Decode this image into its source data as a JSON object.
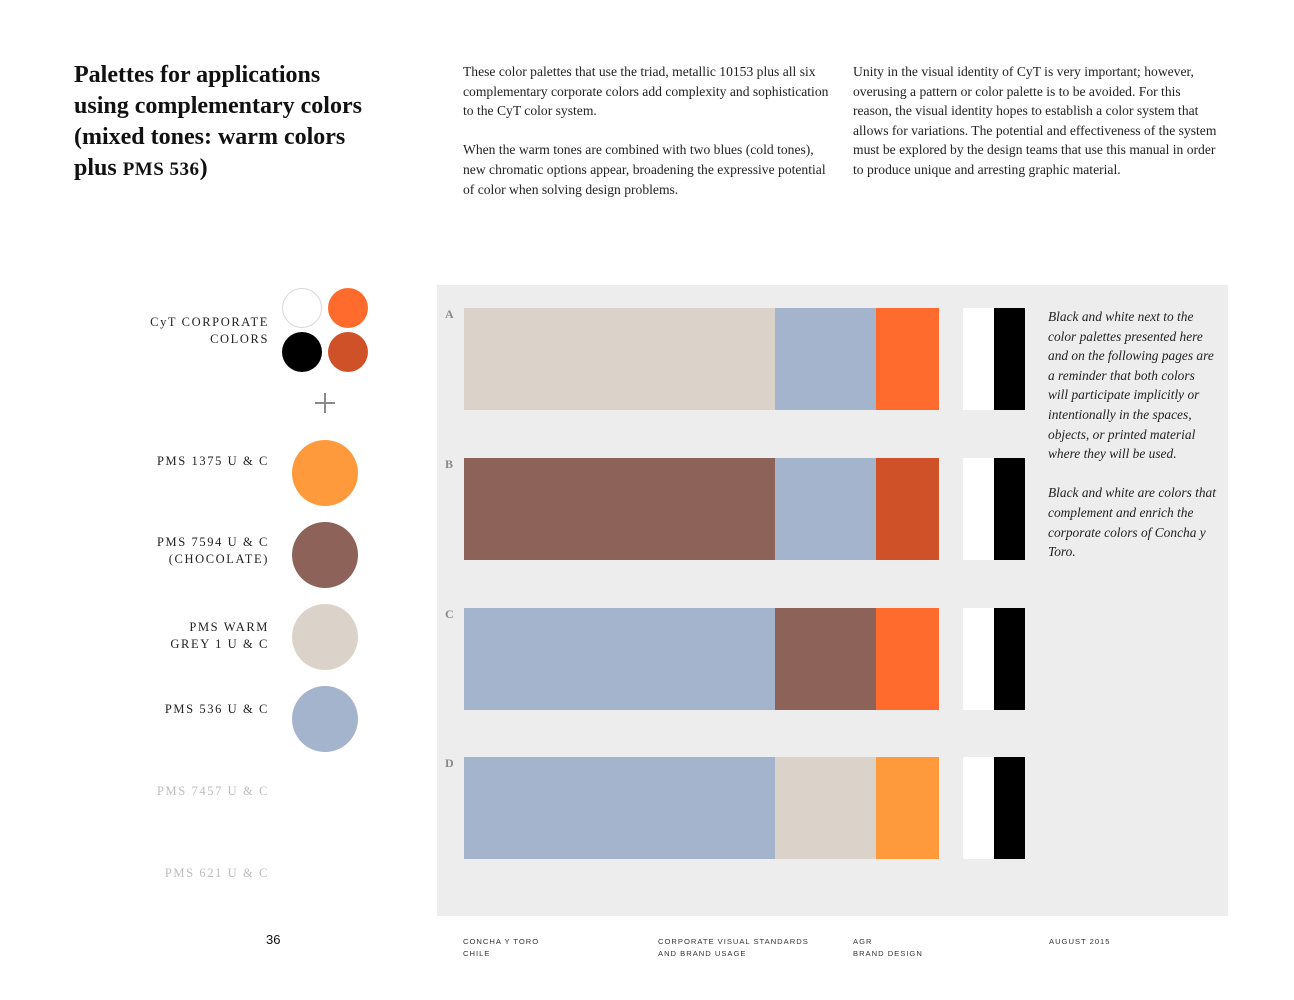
{
  "title": {
    "line1": "Palettes for applications",
    "line2": "using complementary colors",
    "line3": "(mixed tones: warm colors",
    "line4_prefix": "plus ",
    "line4_sc": "PMS 536",
    "line4_suffix": ")"
  },
  "intro": {
    "col1_p1": "These color palettes that use the triad, metallic 10153 plus all six complementary corporate colors add complexity and sophistication to the CyT color system.",
    "col1_p2": "When the warm tones are combined with two blues (cold tones), new chromatic options appear, broadening the expressive potential of color when solving design problems.",
    "col2_p1": "Unity in the visual identity of CyT is very important; however, overusing a pattern or color palette is to be avoided. For this reason, the visual identity hopes to establish a color system that allows for variations. The potential and effectiveness of the system must be explored by the design teams that use this manual in order to produce unique and arresting graphic material."
  },
  "corporate": {
    "label_line1": "CyT CORPORATE",
    "label_line2": "COLORS",
    "colors": [
      "#ffffff",
      "#ff6b2c",
      "#000000",
      "#cf5128"
    ]
  },
  "swatches": [
    {
      "line1": "PMS 1375 U & C",
      "line2": "",
      "color": "#ff9a3c",
      "faded": false
    },
    {
      "line1": "PMS 7594 U & C",
      "line2": "(CHOCOLATE)",
      "color": "#8d6258",
      "faded": false
    },
    {
      "line1": "PMS WARM",
      "line2": "GREY 1 U & C",
      "color": "#dbd2c9",
      "faded": false
    },
    {
      "line1": "PMS 536 U & C",
      "line2": "",
      "color": "#a4b4cc",
      "faded": false
    },
    {
      "line1": "PMS 7457 U & C",
      "line2": "",
      "color": "",
      "faded": true
    },
    {
      "line1": "PMS 621 U & C",
      "line2": "",
      "color": "",
      "faded": true
    }
  ],
  "palettes": [
    {
      "letter": "A",
      "segments": [
        {
          "color": "#dbd2c9",
          "share": 0.654
        },
        {
          "color": "#a4b4cc",
          "share": 0.214
        },
        {
          "color": "#ff6b2c",
          "share": 0.132
        }
      ]
    },
    {
      "letter": "B",
      "segments": [
        {
          "color": "#8d6258",
          "share": 0.654
        },
        {
          "color": "#a4b4cc",
          "share": 0.214
        },
        {
          "color": "#cf5128",
          "share": 0.132
        }
      ]
    },
    {
      "letter": "C",
      "segments": [
        {
          "color": "#a4b4cc",
          "share": 0.654
        },
        {
          "color": "#8d6258",
          "share": 0.214
        },
        {
          "color": "#ff6b2c",
          "share": 0.132
        }
      ]
    },
    {
      "letter": "D",
      "segments": [
        {
          "color": "#a4b4cc",
          "share": 0.654
        },
        {
          "color": "#dbd2c9",
          "share": 0.214
        },
        {
          "color": "#ff9a3c",
          "share": 0.132
        }
      ]
    }
  ],
  "note": {
    "p1": "Black and white next to the color palettes presented here and on the following pages are a reminder that both colors will participate implicitly or intentionally in the spaces, objects, or printed material where they will be used.",
    "p2": "Black and white are colors that complement and enrich the corporate colors of Concha y Toro."
  },
  "footer": {
    "page_number": "36",
    "col1_line1": "CONCHA Y TORO",
    "col1_line2": "CHILE",
    "col2_line1": "CORPORATE VISUAL STANDARDS",
    "col2_line2": "AND BRAND USAGE",
    "col3_line1": "AGR",
    "col3_line2": "BRAND DESIGN",
    "col4_line1": "AUGUST 2015"
  }
}
